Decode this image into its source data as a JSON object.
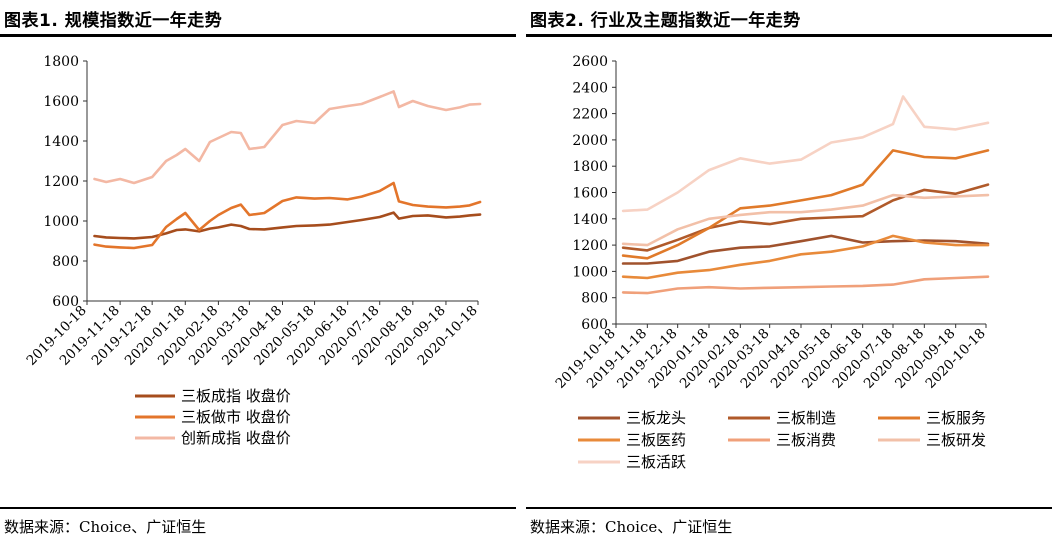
{
  "chart_data": [
    {
      "type": "line",
      "title": "图表1. 规模指数近一年走势",
      "source": "数据来源：Choice、广证恒生",
      "x_tick_labels": [
        "2019-10-18",
        "2019-11-18",
        "2019-12-18",
        "2020-01-18",
        "2020-02-18",
        "2020-03-18",
        "2020-04-18",
        "2020-05-18",
        "2020-06-18",
        "2020-07-18",
        "2020-08-18",
        "2020-09-18",
        "2020-10-18"
      ],
      "y_ticks": [
        600,
        800,
        1000,
        1200,
        1400,
        1600,
        1800
      ],
      "ylim": [
        600,
        1800
      ],
      "grid": false,
      "legend_position": "bottom",
      "series": [
        {
          "name": "三板成指 收盘价",
          "color": "#a64d1d",
          "values": [
            [
              "2019-10-25",
              925
            ],
            [
              "2019-11-05",
              918
            ],
            [
              "2019-11-18",
              915
            ],
            [
              "2019-12-01",
              913
            ],
            [
              "2019-12-18",
              920
            ],
            [
              "2019-12-31",
              938
            ],
            [
              "2020-01-10",
              955
            ],
            [
              "2020-01-18",
              958
            ],
            [
              "2020-01-31",
              948
            ],
            [
              "2020-02-10",
              962
            ],
            [
              "2020-02-18",
              968
            ],
            [
              "2020-03-01",
              982
            ],
            [
              "2020-03-10",
              975
            ],
            [
              "2020-03-18",
              960
            ],
            [
              "2020-04-01",
              958
            ],
            [
              "2020-04-18",
              968
            ],
            [
              "2020-05-01",
              975
            ],
            [
              "2020-05-18",
              978
            ],
            [
              "2020-06-01",
              982
            ],
            [
              "2020-06-18",
              995
            ],
            [
              "2020-07-01",
              1005
            ],
            [
              "2020-07-18",
              1020
            ],
            [
              "2020-07-31",
              1042
            ],
            [
              "2020-08-05",
              1012
            ],
            [
              "2020-08-18",
              1025
            ],
            [
              "2020-09-01",
              1028
            ],
            [
              "2020-09-18",
              1018
            ],
            [
              "2020-10-01",
              1022
            ],
            [
              "2020-10-10",
              1028
            ],
            [
              "2020-10-20",
              1032
            ]
          ]
        },
        {
          "name": "三板做市 收盘价",
          "color": "#e3752b",
          "values": [
            [
              "2019-10-25",
              882
            ],
            [
              "2019-11-05",
              872
            ],
            [
              "2019-11-18",
              868
            ],
            [
              "2019-12-01",
              865
            ],
            [
              "2019-12-18",
              880
            ],
            [
              "2019-12-31",
              970
            ],
            [
              "2020-01-10",
              1010
            ],
            [
              "2020-01-18",
              1040
            ],
            [
              "2020-01-31",
              955
            ],
            [
              "2020-02-10",
              1000
            ],
            [
              "2020-02-18",
              1030
            ],
            [
              "2020-03-01",
              1065
            ],
            [
              "2020-03-10",
              1082
            ],
            [
              "2020-03-18",
              1030
            ],
            [
              "2020-04-01",
              1040
            ],
            [
              "2020-04-18",
              1100
            ],
            [
              "2020-05-01",
              1118
            ],
            [
              "2020-05-18",
              1112
            ],
            [
              "2020-06-01",
              1115
            ],
            [
              "2020-06-18",
              1108
            ],
            [
              "2020-07-01",
              1122
            ],
            [
              "2020-07-18",
              1150
            ],
            [
              "2020-07-31",
              1190
            ],
            [
              "2020-08-05",
              1098
            ],
            [
              "2020-08-18",
              1080
            ],
            [
              "2020-09-01",
              1072
            ],
            [
              "2020-09-18",
              1068
            ],
            [
              "2020-10-01",
              1072
            ],
            [
              "2020-10-10",
              1078
            ],
            [
              "2020-10-20",
              1095
            ]
          ]
        },
        {
          "name": "创新成指 收盘价",
          "color": "#f3b8a4",
          "values": [
            [
              "2019-10-25",
              1210
            ],
            [
              "2019-11-05",
              1195
            ],
            [
              "2019-11-18",
              1210
            ],
            [
              "2019-12-01",
              1190
            ],
            [
              "2019-12-18",
              1220
            ],
            [
              "2019-12-31",
              1300
            ],
            [
              "2020-01-10",
              1330
            ],
            [
              "2020-01-18",
              1360
            ],
            [
              "2020-01-31",
              1300
            ],
            [
              "2020-02-10",
              1395
            ],
            [
              "2020-02-18",
              1415
            ],
            [
              "2020-03-01",
              1445
            ],
            [
              "2020-03-10",
              1440
            ],
            [
              "2020-03-18",
              1360
            ],
            [
              "2020-04-01",
              1370
            ],
            [
              "2020-04-18",
              1480
            ],
            [
              "2020-05-01",
              1500
            ],
            [
              "2020-05-18",
              1490
            ],
            [
              "2020-06-01",
              1560
            ],
            [
              "2020-06-18",
              1575
            ],
            [
              "2020-07-01",
              1585
            ],
            [
              "2020-07-18",
              1620
            ],
            [
              "2020-07-31",
              1648
            ],
            [
              "2020-08-05",
              1570
            ],
            [
              "2020-08-18",
              1600
            ],
            [
              "2020-09-01",
              1575
            ],
            [
              "2020-09-18",
              1555
            ],
            [
              "2020-10-01",
              1568
            ],
            [
              "2020-10-10",
              1582
            ],
            [
              "2020-10-20",
              1585
            ]
          ]
        }
      ]
    },
    {
      "type": "line",
      "title": "图表2. 行业及主题指数近一年走势",
      "source": "数据来源：Choice、广证恒生",
      "x_tick_labels": [
        "2019-10-18",
        "2019-11-18",
        "2019-12-18",
        "2020-01-18",
        "2020-02-18",
        "2020-03-18",
        "2020-04-18",
        "2020-05-18",
        "2020-06-18",
        "2020-07-18",
        "2020-08-18",
        "2020-09-18",
        "2020-10-18"
      ],
      "y_ticks": [
        600,
        800,
        1000,
        1200,
        1400,
        1600,
        1800,
        2000,
        2200,
        2400,
        2600
      ],
      "ylim": [
        600,
        2600
      ],
      "grid": false,
      "legend_position": "bottom",
      "series": [
        {
          "name": "三板龙头",
          "color": "#a0522d",
          "values": [
            [
              "2019-10-25",
              1060
            ],
            [
              "2019-11-18",
              1060
            ],
            [
              "2019-12-18",
              1080
            ],
            [
              "2020-01-18",
              1150
            ],
            [
              "2020-02-18",
              1180
            ],
            [
              "2020-03-18",
              1190
            ],
            [
              "2020-04-18",
              1230
            ],
            [
              "2020-05-18",
              1270
            ],
            [
              "2020-06-18",
              1220
            ],
            [
              "2020-07-18",
              1230
            ],
            [
              "2020-08-18",
              1235
            ],
            [
              "2020-09-18",
              1230
            ],
            [
              "2020-10-20",
              1210
            ]
          ]
        },
        {
          "name": "三板制造",
          "color": "#b05a2a",
          "values": [
            [
              "2019-10-25",
              1180
            ],
            [
              "2019-11-18",
              1160
            ],
            [
              "2019-12-18",
              1240
            ],
            [
              "2020-01-18",
              1330
            ],
            [
              "2020-02-18",
              1380
            ],
            [
              "2020-03-18",
              1360
            ],
            [
              "2020-04-18",
              1400
            ],
            [
              "2020-05-18",
              1410
            ],
            [
              "2020-06-18",
              1420
            ],
            [
              "2020-07-18",
              1540
            ],
            [
              "2020-08-18",
              1620
            ],
            [
              "2020-09-18",
              1590
            ],
            [
              "2020-10-20",
              1660
            ]
          ]
        },
        {
          "name": "三板服务",
          "color": "#e07a2a",
          "values": [
            [
              "2019-10-25",
              1120
            ],
            [
              "2019-11-18",
              1100
            ],
            [
              "2019-12-18",
              1200
            ],
            [
              "2020-01-18",
              1330
            ],
            [
              "2020-02-18",
              1480
            ],
            [
              "2020-03-18",
              1500
            ],
            [
              "2020-04-18",
              1540
            ],
            [
              "2020-05-18",
              1580
            ],
            [
              "2020-06-18",
              1660
            ],
            [
              "2020-07-18",
              1920
            ],
            [
              "2020-08-18",
              1870
            ],
            [
              "2020-09-18",
              1860
            ],
            [
              "2020-10-20",
              1920
            ]
          ]
        },
        {
          "name": "三板医药",
          "color": "#e88a3a",
          "values": [
            [
              "2019-10-25",
              960
            ],
            [
              "2019-11-18",
              950
            ],
            [
              "2019-12-18",
              990
            ],
            [
              "2020-01-18",
              1010
            ],
            [
              "2020-02-18",
              1050
            ],
            [
              "2020-03-18",
              1080
            ],
            [
              "2020-04-18",
              1130
            ],
            [
              "2020-05-18",
              1150
            ],
            [
              "2020-06-18",
              1190
            ],
            [
              "2020-07-18",
              1270
            ],
            [
              "2020-08-18",
              1220
            ],
            [
              "2020-09-18",
              1200
            ],
            [
              "2020-10-20",
              1200
            ]
          ]
        },
        {
          "name": "三板消费",
          "color": "#f0a07a",
          "values": [
            [
              "2019-10-25",
              840
            ],
            [
              "2019-11-18",
              835
            ],
            [
              "2019-12-18",
              870
            ],
            [
              "2020-01-18",
              880
            ],
            [
              "2020-02-18",
              870
            ],
            [
              "2020-03-18",
              875
            ],
            [
              "2020-04-18",
              880
            ],
            [
              "2020-05-18",
              885
            ],
            [
              "2020-06-18",
              890
            ],
            [
              "2020-07-18",
              900
            ],
            [
              "2020-08-18",
              940
            ],
            [
              "2020-09-18",
              950
            ],
            [
              "2020-10-20",
              960
            ]
          ]
        },
        {
          "name": "三板研发",
          "color": "#f2c0a8",
          "values": [
            [
              "2019-10-25",
              1210
            ],
            [
              "2019-11-18",
              1200
            ],
            [
              "2019-12-18",
              1320
            ],
            [
              "2020-01-18",
              1400
            ],
            [
              "2020-02-18",
              1430
            ],
            [
              "2020-03-18",
              1450
            ],
            [
              "2020-04-18",
              1450
            ],
            [
              "2020-05-18",
              1470
            ],
            [
              "2020-06-18",
              1500
            ],
            [
              "2020-07-18",
              1580
            ],
            [
              "2020-08-18",
              1560
            ],
            [
              "2020-09-18",
              1570
            ],
            [
              "2020-10-20",
              1580
            ]
          ]
        },
        {
          "name": "三板活跃",
          "color": "#f7d2c4",
          "values": [
            [
              "2019-10-25",
              1460
            ],
            [
              "2019-11-18",
              1470
            ],
            [
              "2019-12-18",
              1600
            ],
            [
              "2020-01-18",
              1770
            ],
            [
              "2020-02-18",
              1860
            ],
            [
              "2020-03-18",
              1820
            ],
            [
              "2020-04-18",
              1850
            ],
            [
              "2020-05-18",
              1980
            ],
            [
              "2020-06-18",
              2020
            ],
            [
              "2020-07-18",
              2120
            ],
            [
              "2020-07-28",
              2330
            ],
            [
              "2020-08-18",
              2100
            ],
            [
              "2020-09-18",
              2080
            ],
            [
              "2020-10-20",
              2130
            ]
          ]
        }
      ]
    }
  ]
}
